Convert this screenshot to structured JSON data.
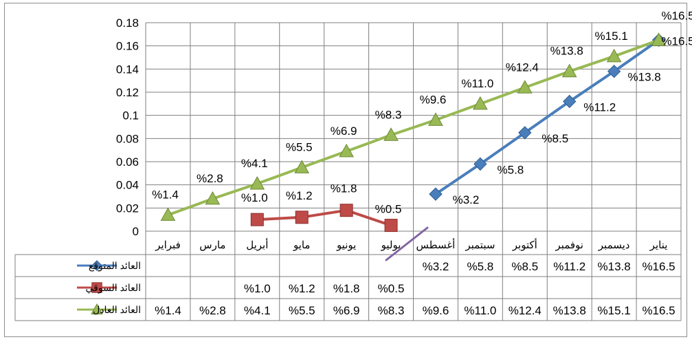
{
  "chart_data": {
    "type": "line",
    "categories": [
      "فبراير",
      "مارس",
      "أبريل",
      "مايو",
      "يونيو",
      "يوليو",
      "أغسطس",
      "سبتمبر",
      "أكتوبر",
      "نوفمبر",
      "ديسمبر",
      "يناير"
    ],
    "ylim": [
      0,
      0.18
    ],
    "yticks": [
      "0",
      "0.02",
      "0.04",
      "0.06",
      "0.08",
      "0.1",
      "0.12",
      "0.14",
      "0.16",
      "0.18"
    ],
    "grid": true,
    "legend": "data-table-left",
    "series": [
      {
        "name": "العائد المتوقع",
        "color": "#4a7ebb",
        "marker": "diamond",
        "values": [
          null,
          null,
          null,
          null,
          null,
          null,
          0.032,
          0.058,
          0.085,
          0.112,
          0.138,
          0.165
        ],
        "labels": [
          "",
          "",
          "",
          "",
          "",
          "",
          "%3.2",
          "%5.8",
          "%8.5",
          "%11.2",
          "%13.8",
          "%16.5"
        ]
      },
      {
        "name": "العائد السوقي",
        "color": "#be4b48",
        "marker": "square",
        "values": [
          null,
          null,
          0.01,
          0.012,
          0.018,
          0.005,
          null,
          null,
          null,
          null,
          null,
          null
        ],
        "labels": [
          "",
          "",
          "%1.0",
          "%1.2",
          "%1.8",
          "%0.5",
          "",
          "",
          "",
          "",
          "",
          ""
        ]
      },
      {
        "name": "العائد العادل",
        "color": "#98b954",
        "marker": "triangle",
        "values": [
          0.014,
          0.028,
          0.041,
          0.055,
          0.069,
          0.083,
          0.096,
          0.11,
          0.124,
          0.138,
          0.151,
          0.165
        ],
        "labels": [
          "%1.4",
          "%2.8",
          "%4.1",
          "%5.5",
          "%6.9",
          "%8.3",
          "%9.6",
          "%11.0",
          "%12.4",
          "%13.8",
          "%15.1",
          "%16.5"
        ]
      }
    ],
    "annotation_color": "#8064a2"
  }
}
